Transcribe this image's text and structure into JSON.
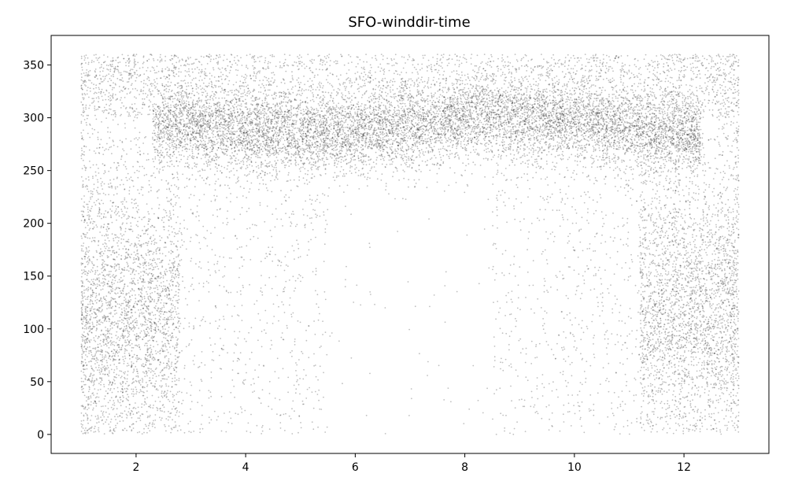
{
  "chart_data": {
    "type": "scatter",
    "title": "SFO-winddir-time",
    "xlabel": "",
    "ylabel": "",
    "xlim": [
      0.45,
      13.55
    ],
    "ylim": [
      -18,
      378
    ],
    "xticks": [
      2,
      4,
      6,
      8,
      10,
      12
    ],
    "yticks": [
      0,
      50,
      100,
      150,
      200,
      250,
      300,
      350
    ],
    "x_range": [
      1,
      13
    ],
    "y_range": [
      0,
      360
    ],
    "point_color": "#000000",
    "point_opacity": 0.25,
    "grid": false,
    "legend": "none",
    "distribution": [
      {
        "region": "dominant westerly band",
        "x": [
          2.3,
          12.3
        ],
        "y_center": 285,
        "y_center_peak": 295,
        "y_spread": 18
      },
      {
        "region": "winter southerly cluster (early year)",
        "x": [
          1,
          2.8
        ],
        "y_center": 110,
        "y_spread": 60
      },
      {
        "region": "winter southerly cluster (late year)",
        "x": [
          11.2,
          13
        ],
        "y_center": 120,
        "y_spread": 60
      },
      {
        "region": "sparse background",
        "x": [
          1,
          13
        ],
        "y": [
          0,
          360
        ]
      }
    ]
  }
}
